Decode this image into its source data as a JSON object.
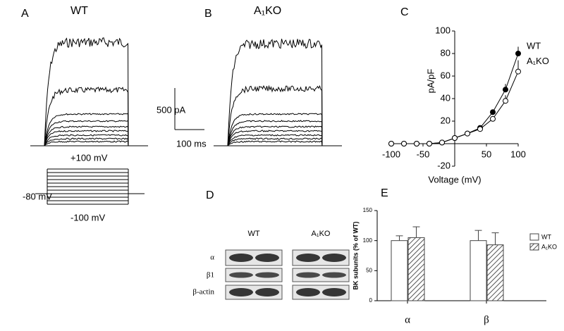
{
  "panels": {
    "a": {
      "label": "A",
      "title": "WT",
      "step_high": "+100 mV",
      "hold": "-80 mV",
      "step_low": "-100 mV"
    },
    "b": {
      "label": "B",
      "title": "A₁KO"
    },
    "scale": {
      "current": "500 pA",
      "time": "100 ms"
    },
    "d": {
      "label": "D",
      "groups": [
        "WT",
        "A₁KO"
      ],
      "rows": [
        "α",
        "β1",
        "β-actin"
      ]
    }
  },
  "chart_data": [
    {
      "type": "line",
      "label": "C",
      "xlabel": "Voltage (mV)",
      "ylabel": "pA/pF",
      "x": [
        -100,
        -80,
        -60,
        -40,
        -20,
        0,
        20,
        40,
        60,
        80,
        100
      ],
      "series": [
        {
          "name": "WT",
          "color": "#000000",
          "marker_fill": "#000000",
          "values": [
            0,
            0,
            0,
            0,
            1,
            5,
            9,
            14,
            28,
            48,
            80
          ],
          "errors": [
            0,
            0,
            0,
            0,
            0,
            0,
            1,
            1,
            2,
            5,
            6
          ]
        },
        {
          "name": "A₁KO",
          "color": "#000000",
          "marker_fill": "#ffffff",
          "values": [
            0,
            0,
            0,
            0,
            1,
            5,
            9,
            13,
            22,
            38,
            64
          ],
          "errors": [
            0,
            0,
            0,
            0,
            0,
            0,
            1,
            1,
            2,
            5,
            10
          ]
        }
      ],
      "xlim": [
        -100,
        100
      ],
      "xticks": [
        -100,
        -50,
        50,
        100
      ],
      "ylim": [
        -20,
        100
      ],
      "yticks": [
        -20,
        20,
        40,
        60,
        80,
        100
      ]
    },
    {
      "type": "bar",
      "label": "E",
      "ylabel": "BK subunits (% of WT)",
      "categories": [
        "α",
        "β"
      ],
      "series": [
        {
          "name": "WT",
          "color": "#ffffff",
          "hatch": false,
          "values": [
            100,
            100
          ],
          "errors": [
            8,
            17
          ]
        },
        {
          "name": "A₁KO",
          "color": "#ffffff",
          "hatch": true,
          "values": [
            105,
            93
          ],
          "errors": [
            18,
            20
          ]
        }
      ],
      "ylim": [
        0,
        150
      ],
      "yticks": [
        0,
        50,
        100,
        150
      ],
      "legend": "upper right"
    }
  ]
}
